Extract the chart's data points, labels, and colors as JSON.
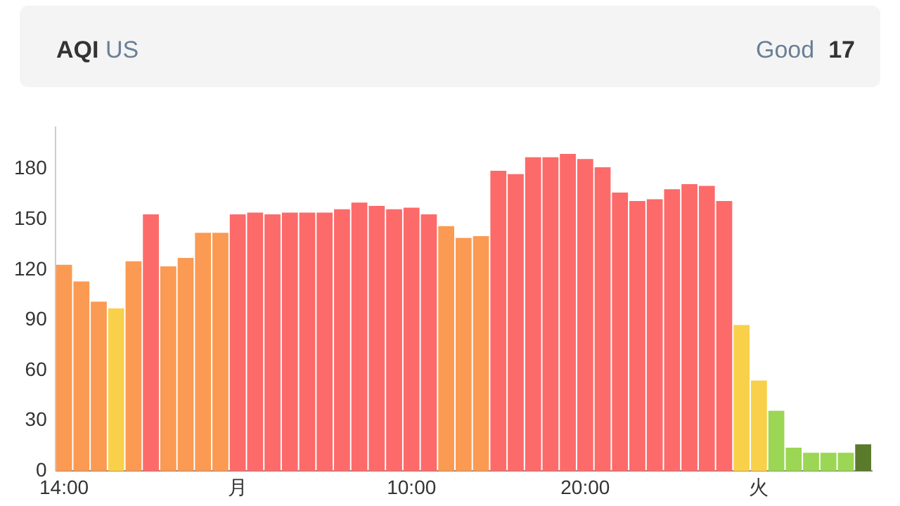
{
  "chart_data": {
    "type": "bar",
    "title": "AQI",
    "subtitle": "US",
    "annotations": [
      "Good",
      "17"
    ],
    "categories": [
      "14:00",
      null,
      null,
      null,
      null,
      null,
      null,
      null,
      null,
      null,
      "月",
      null,
      null,
      null,
      null,
      null,
      null,
      null,
      null,
      null,
      "10:00",
      null,
      null,
      null,
      null,
      null,
      null,
      null,
      null,
      null,
      "20:00",
      null,
      null,
      null,
      null,
      null,
      null,
      null,
      null,
      null,
      "火",
      null,
      null,
      null,
      null,
      null,
      null
    ],
    "values": [
      123,
      113,
      101,
      97,
      125,
      153,
      122,
      127,
      142,
      142,
      153,
      154,
      153,
      154,
      154,
      154,
      156,
      160,
      158,
      156,
      157,
      153,
      146,
      139,
      140,
      179,
      177,
      187,
      187,
      189,
      186,
      181,
      166,
      161,
      162,
      168,
      171,
      170,
      161,
      87,
      54,
      36,
      14,
      11,
      11,
      11,
      16
    ],
    "colors": [
      "#fb9a52",
      "#fb9a52",
      "#fb9a52",
      "#f9d04a",
      "#fb9a52",
      "#fd6a6a",
      "#fb9a52",
      "#fb9a52",
      "#fb9a52",
      "#fb9a52",
      "#fd6a6a",
      "#fd6a6a",
      "#fd6a6a",
      "#fd6a6a",
      "#fd6a6a",
      "#fd6a6a",
      "#fd6a6a",
      "#fd6a6a",
      "#fd6a6a",
      "#fd6a6a",
      "#fd6a6a",
      "#fd6a6a",
      "#fb9a52",
      "#fb9a52",
      "#fb9a52",
      "#fd6a6a",
      "#fd6a6a",
      "#fd6a6a",
      "#fd6a6a",
      "#fd6a6a",
      "#fd6a6a",
      "#fd6a6a",
      "#fd6a6a",
      "#fd6a6a",
      "#fd6a6a",
      "#fd6a6a",
      "#fd6a6a",
      "#fd6a6a",
      "#fd6a6a",
      "#f9d04a",
      "#f9d04a",
      "#9bd654",
      "#9bd654",
      "#9bd654",
      "#9bd654",
      "#9bd654",
      "#5a7a2c"
    ],
    "ylim": [
      0,
      205
    ],
    "yticks": [
      0,
      30,
      60,
      90,
      120,
      150,
      180
    ],
    "grid": false,
    "legend": false
  }
}
